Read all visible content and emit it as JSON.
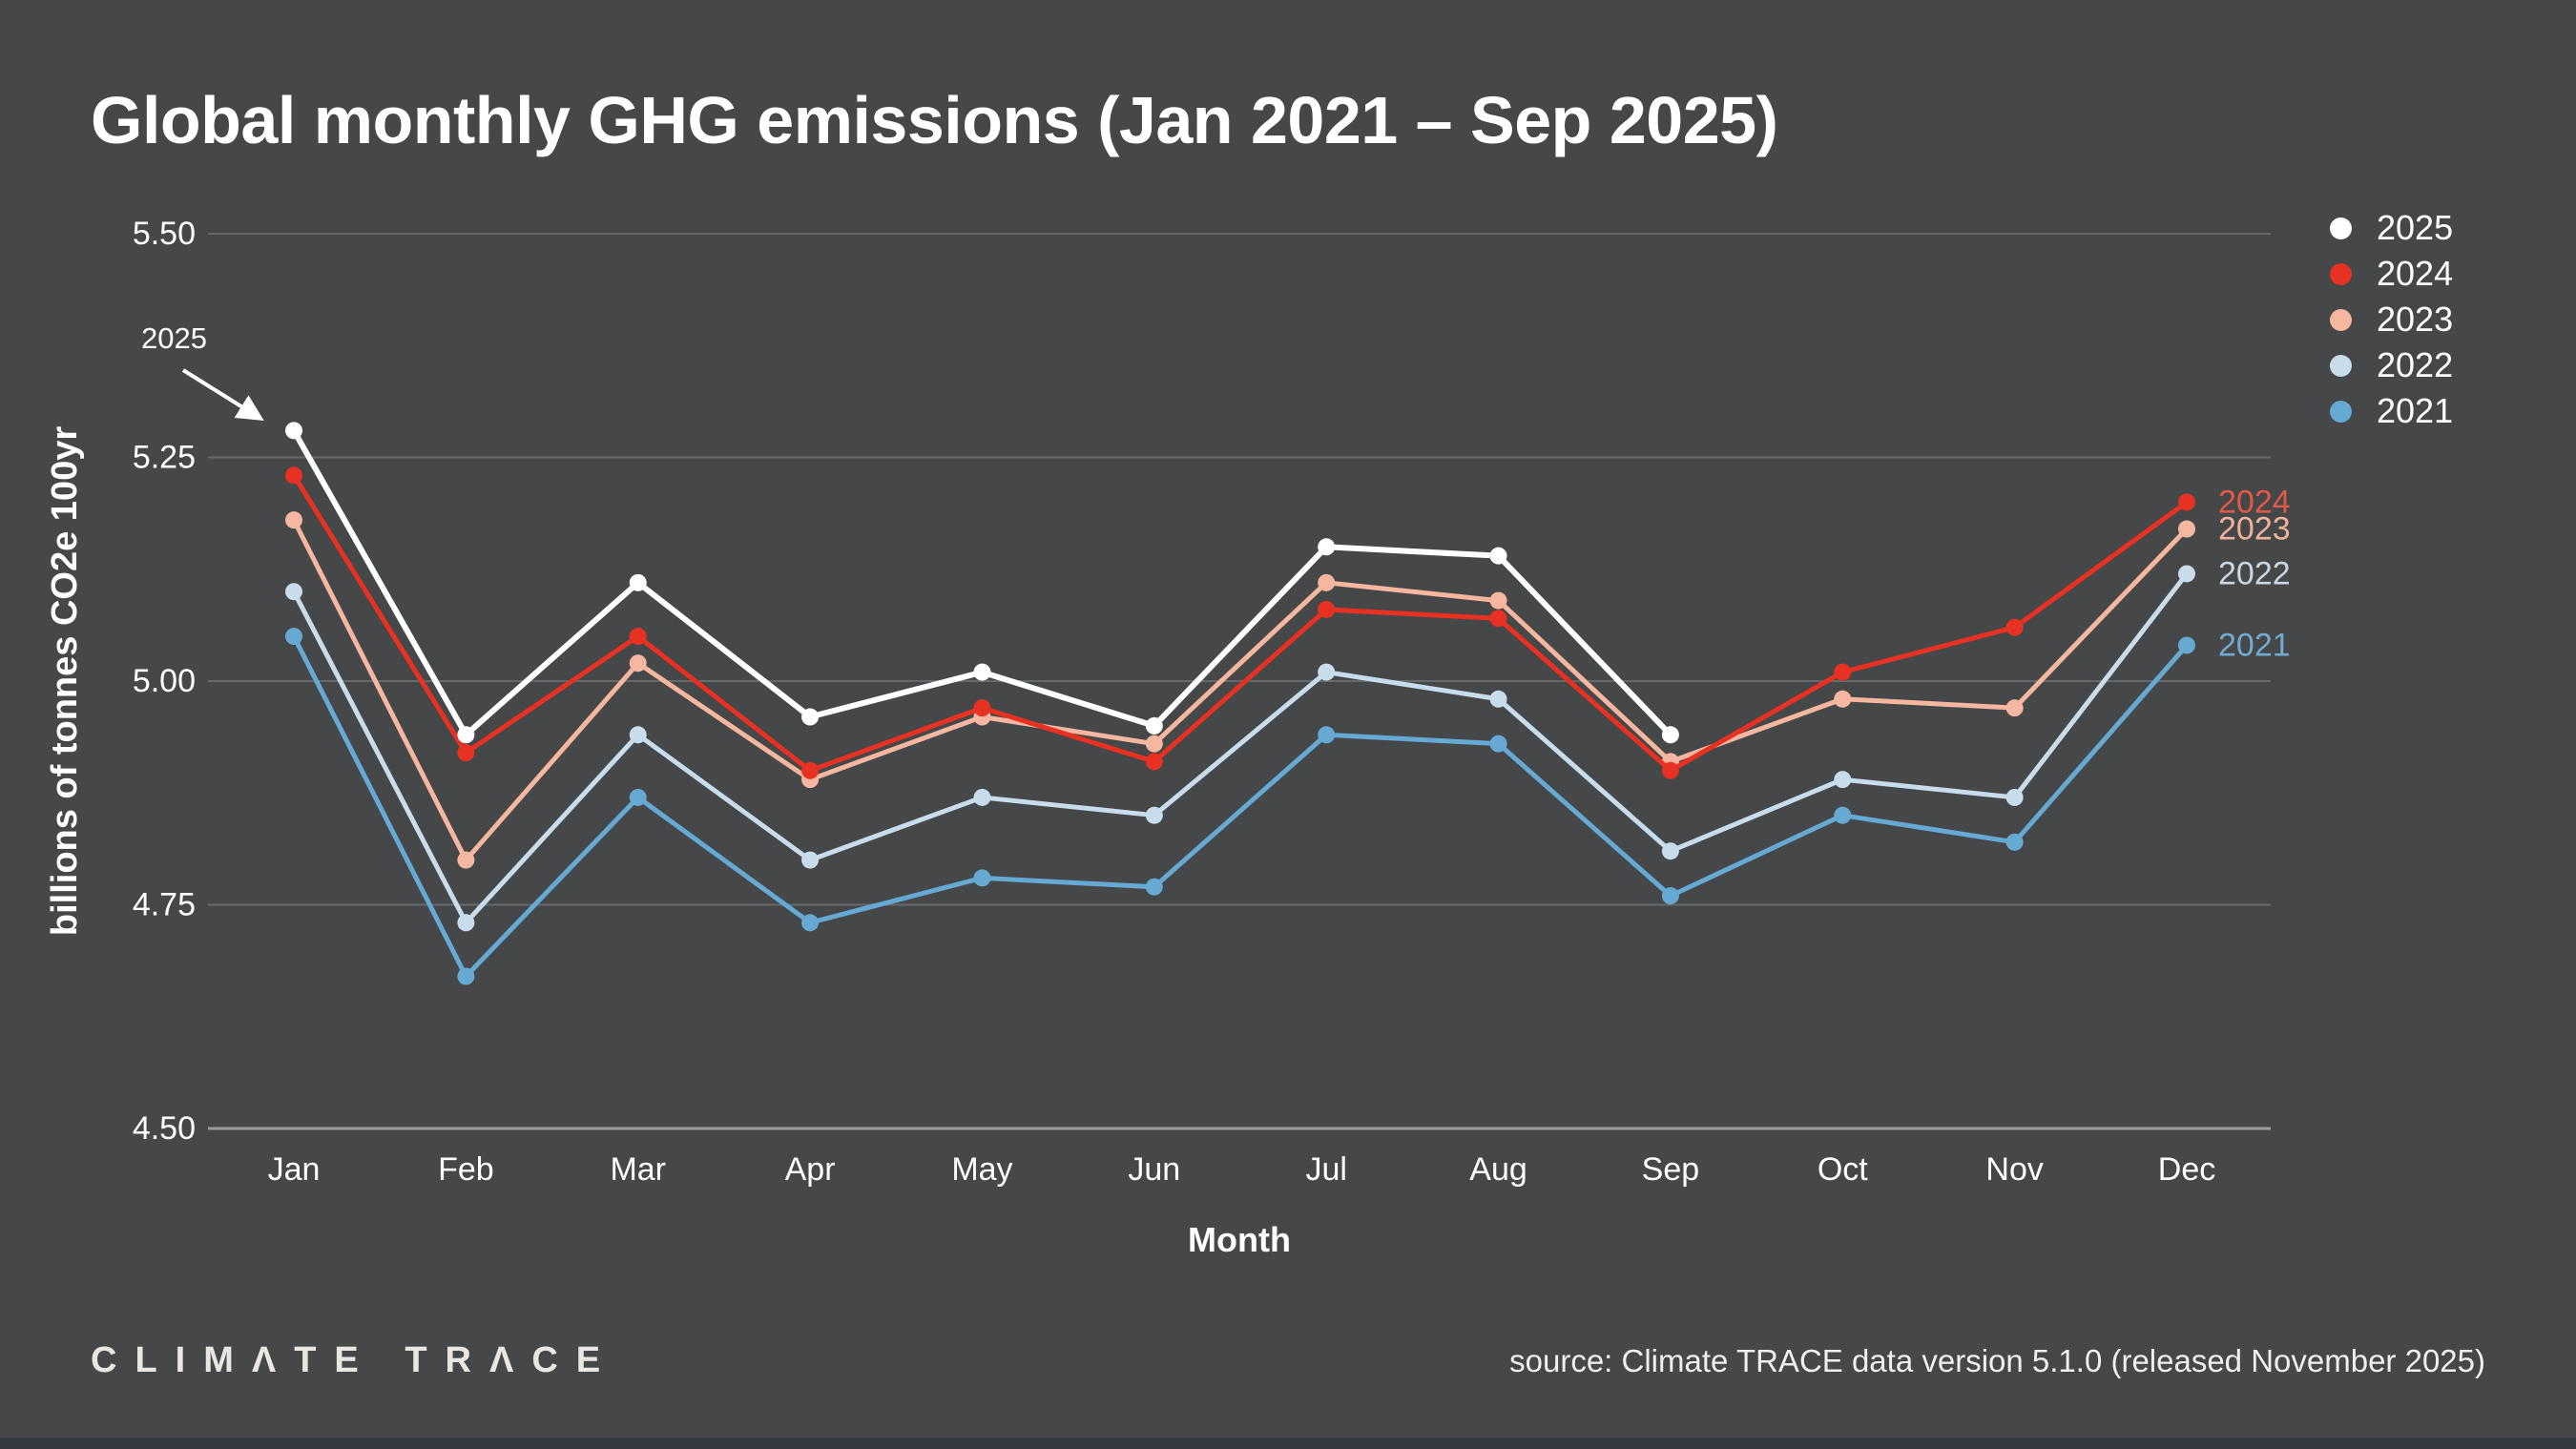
{
  "title": "Global monthly GHG emissions (Jan 2021 – Sep 2025)",
  "palette": {
    "background": "#454749",
    "gridline": "#66696c",
    "axis_line": "#9a9da0",
    "text": "#ffffff",
    "footer_bar": "#343840",
    "logo_text": "#e9e7e3",
    "source_text": "#edeff1"
  },
  "chart_data": {
    "type": "line",
    "title": "Global monthly GHG emissions (Jan 2021 – Sep 2025)",
    "xlabel": "Month",
    "ylabel": "billions of tonnes CO2e 100yr",
    "categories": [
      "Jan",
      "Feb",
      "Mar",
      "Apr",
      "May",
      "Jun",
      "Jul",
      "Aug",
      "Sep",
      "Oct",
      "Nov",
      "Dec"
    ],
    "yticks": [
      "5.50",
      "5.25",
      "5.00",
      "4.75",
      "4.50"
    ],
    "ylim": [
      4.5,
      5.5
    ],
    "grid": true,
    "legend_position": "top-right",
    "series": [
      {
        "name": "2025",
        "color": "#ffffff",
        "values": [
          5.28,
          4.94,
          5.11,
          4.96,
          5.01,
          4.95,
          5.15,
          5.14,
          4.94
        ]
      },
      {
        "name": "2024",
        "color": "#e73123",
        "end_label": "2024",
        "end_label_color": "#e05a45",
        "values": [
          5.23,
          4.92,
          5.05,
          4.9,
          4.97,
          4.91,
          5.08,
          5.07,
          4.9,
          5.01,
          5.06,
          5.2
        ]
      },
      {
        "name": "2023",
        "color": "#f5b79f",
        "end_label": "2023",
        "end_label_color": "#eeb29a",
        "values": [
          5.18,
          4.8,
          5.02,
          4.89,
          4.96,
          4.93,
          5.11,
          5.09,
          4.91,
          4.98,
          4.97,
          5.17
        ]
      },
      {
        "name": "2022",
        "color": "#c8dcec",
        "end_label": "2022",
        "end_label_color": "#ccd6df",
        "values": [
          5.1,
          4.73,
          4.94,
          4.8,
          4.87,
          4.85,
          5.01,
          4.98,
          4.81,
          4.89,
          4.87,
          5.12
        ]
      },
      {
        "name": "2021",
        "color": "#66a9d3",
        "end_label": "2021",
        "end_label_color": "#74abd1",
        "values": [
          5.05,
          4.67,
          4.87,
          4.73,
          4.78,
          4.77,
          4.94,
          4.93,
          4.76,
          4.85,
          4.82,
          5.04
        ]
      }
    ],
    "annotation": {
      "text": "2025",
      "target": "Jan 2025 point"
    }
  },
  "footer": {
    "logo": "CLIMΛTE TRΛCE",
    "source": "source: Climate TRACE data version 5.1.0 (released November 2025)"
  }
}
